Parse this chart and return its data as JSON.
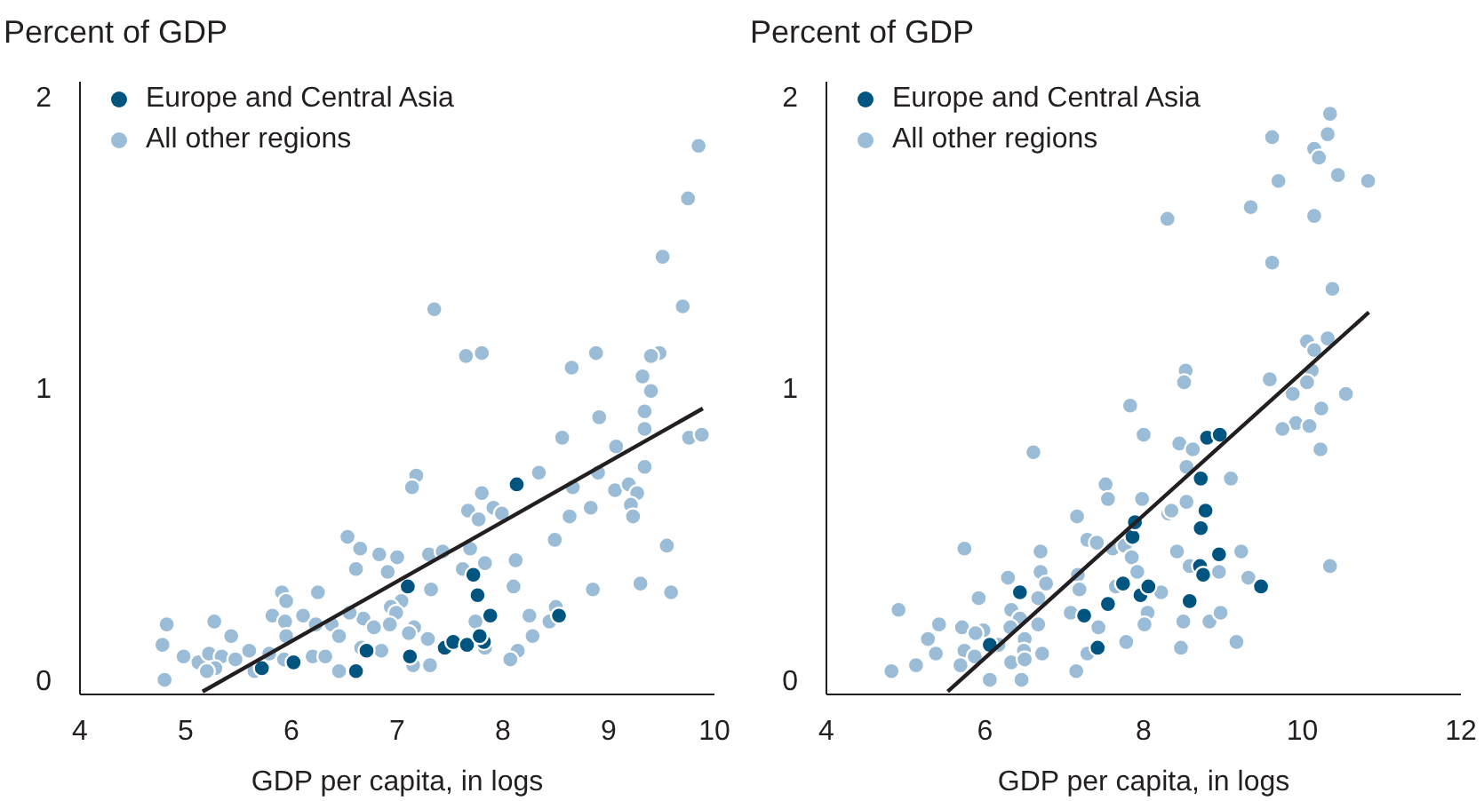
{
  "chart_data": [
    {
      "type": "scatter",
      "ylabel": "Percent of GDP",
      "xlabel": "GDP per capita, in logs",
      "xlim": [
        4,
        10
      ],
      "xticks": [
        4,
        5,
        6,
        7,
        8,
        9,
        10
      ],
      "ylim": [
        -0.05,
        2.05
      ],
      "yticks": [
        0,
        1,
        2
      ],
      "grid": false,
      "legend": "top left",
      "series": [
        {
          "name": "Europe and Central Asia",
          "color": "#005580",
          "marker": "circle",
          "x": [
            5.72,
            6.02,
            6.61,
            6.71,
            7.12,
            7.1,
            7.45,
            7.53,
            7.66,
            7.82,
            7.78,
            7.72,
            7.76,
            7.88,
            8.13,
            8.53
          ],
          "values": [
            0.04,
            0.06,
            0.03,
            0.1,
            0.08,
            0.32,
            0.11,
            0.13,
            0.12,
            0.13,
            0.15,
            0.36,
            0.29,
            0.22,
            0.67,
            0.22
          ]
        },
        {
          "name": "All other regions",
          "color": "#9bbcd6",
          "marker": "circle",
          "x": [
            9.85,
            9.75,
            9.51,
            9.7,
            7.35,
            7.65,
            7.8,
            8.88,
            8.65,
            9.48,
            9.4,
            9.32,
            9.4,
            9.34,
            9.34,
            8.91,
            8.56,
            9.76,
            9.88,
            9.07,
            9.34,
            8.34,
            8.9,
            8.66,
            9.06,
            9.19,
            9.27,
            9.21,
            9.23,
            8.83,
            8.63,
            9.55,
            8.49,
            9.3,
            9.59,
            8.85,
            7.18,
            7.14,
            7.8,
            7.91,
            7.67,
            7.77,
            7.99,
            6.53,
            6.65,
            6.83,
            7.0,
            7.3,
            7.43,
            7.69,
            7.83,
            8.12,
            7.62,
            6.61,
            6.91,
            5.91,
            5.95,
            6.25,
            7.32,
            8.1,
            7.04,
            6.94,
            5.82,
            5.94,
            6.11,
            6.68,
            6.99,
            4.82,
            5.27,
            5.43,
            6.23,
            6.38,
            6.55,
            6.78,
            6.93,
            7.16,
            5.95,
            6.45,
            7.11,
            7.29,
            7.74,
            8.25,
            8.44,
            8.5,
            8.28,
            4.78,
            4.98,
            5.12,
            5.22,
            5.34,
            5.28,
            5.47,
            5.6,
            5.65,
            5.79,
            5.93,
            6.2,
            6.32,
            6.45,
            6.66,
            6.85,
            7.15,
            7.31,
            7.83,
            8.14,
            8.07,
            4.8,
            5.2
          ],
          "values": [
            1.83,
            1.65,
            1.45,
            1.28,
            1.27,
            1.11,
            1.12,
            1.12,
            1.07,
            1.12,
            1.11,
            1.04,
            0.99,
            0.92,
            0.86,
            0.9,
            0.83,
            0.83,
            0.84,
            0.8,
            0.73,
            0.71,
            0.71,
            0.66,
            0.65,
            0.67,
            0.64,
            0.6,
            0.56,
            0.59,
            0.56,
            0.46,
            0.48,
            0.33,
            0.3,
            0.31,
            0.7,
            0.66,
            0.64,
            0.59,
            0.58,
            0.55,
            0.57,
            0.49,
            0.45,
            0.43,
            0.42,
            0.43,
            0.44,
            0.45,
            0.4,
            0.41,
            0.38,
            0.38,
            0.37,
            0.3,
            0.27,
            0.3,
            0.31,
            0.32,
            0.27,
            0.25,
            0.22,
            0.2,
            0.22,
            0.21,
            0.23,
            0.19,
            0.2,
            0.15,
            0.19,
            0.19,
            0.23,
            0.18,
            0.19,
            0.18,
            0.15,
            0.15,
            0.16,
            0.14,
            0.2,
            0.22,
            0.2,
            0.25,
            0.15,
            0.12,
            0.08,
            0.06,
            0.09,
            0.08,
            0.04,
            0.07,
            0.1,
            0.03,
            0.09,
            0.07,
            0.08,
            0.08,
            0.03,
            0.11,
            0.1,
            0.05,
            0.05,
            0.11,
            0.1,
            0.07,
            0.0,
            0.03
          ]
        },
        {
          "type": "line",
          "color": "#231f20",
          "marker": "none",
          "x": [
            5.16,
            9.89
          ],
          "values": [
            -0.04,
            0.93
          ]
        }
      ]
    },
    {
      "type": "scatter",
      "ylabel": "Percent of GDP",
      "xlabel": "GDP per capita, in logs",
      "xlim": [
        4,
        12
      ],
      "xticks": [
        4,
        6,
        8,
        10,
        12
      ],
      "ylim": [
        -0.05,
        2.05
      ],
      "yticks": [
        0,
        1,
        2
      ],
      "grid": false,
      "legend": "top left",
      "series": [
        {
          "name": "Europe and Central Asia",
          "color": "#005580",
          "marker": "circle",
          "x": [
            6.06,
            6.44,
            7.25,
            7.42,
            7.55,
            7.74,
            7.96,
            8.06,
            7.86,
            7.89,
            8.58,
            8.71,
            8.75,
            8.72,
            8.78,
            8.72,
            8.8,
            8.96,
            8.95,
            9.48
          ],
          "values": [
            0.12,
            0.3,
            0.22,
            0.11,
            0.26,
            0.33,
            0.29,
            0.32,
            0.49,
            0.54,
            0.27,
            0.39,
            0.36,
            0.52,
            0.58,
            0.69,
            0.83,
            0.84,
            0.43,
            0.32
          ]
        },
        {
          "name": "All other regions",
          "color": "#9bbcd6",
          "marker": "circle",
          "x": [
            10.35,
            10.32,
            9.62,
            10.15,
            10.21,
            10.45,
            9.7,
            10.83,
            9.35,
            8.3,
            10.15,
            9.62,
            10.38,
            10.32,
            10.06,
            10.15,
            10.12,
            8.53,
            8.51,
            9.59,
            10.06,
            10.55,
            9.88,
            10.24,
            9.92,
            10.09,
            9.75,
            10.23,
            7.83,
            8.0,
            8.45,
            8.62,
            6.61,
            8.54,
            9.1,
            7.52,
            7.55,
            7.98,
            8.54,
            7.16,
            8.31,
            8.35,
            7.29,
            7.41,
            7.61,
            7.76,
            7.85,
            8.42,
            9.23,
            10.35,
            5.74,
            6.7,
            6.29,
            6.7,
            6.77,
            7.17,
            7.92,
            8.58,
            8.95,
            9.32,
            5.92,
            6.67,
            7.19,
            7.65,
            8.22,
            4.91,
            5.42,
            5.71,
            5.98,
            6.33,
            6.44,
            6.67,
            7.08,
            8.05,
            8.01,
            8.5,
            8.83,
            8.97,
            7.43,
            5.28,
            5.88,
            6.32,
            6.5,
            5.38,
            5.74,
            5.87,
            6.49,
            6.72,
            7.29,
            7.78,
            8.47,
            9.17,
            4.82,
            5.13,
            5.69,
            6.33,
            6.5,
            7.15,
            6.06,
            6.46,
            6.17
          ],
          "values": [
            1.94,
            1.87,
            1.86,
            1.82,
            1.79,
            1.73,
            1.71,
            1.71,
            1.62,
            1.58,
            1.59,
            1.43,
            1.34,
            1.17,
            1.16,
            1.13,
            1.06,
            1.06,
            1.02,
            1.03,
            1.02,
            0.98,
            0.98,
            0.93,
            0.88,
            0.87,
            0.86,
            0.79,
            0.94,
            0.84,
            0.81,
            0.79,
            0.78,
            0.73,
            0.69,
            0.67,
            0.62,
            0.62,
            0.61,
            0.56,
            0.57,
            0.58,
            0.48,
            0.47,
            0.45,
            0.46,
            0.42,
            0.44,
            0.44,
            0.39,
            0.45,
            0.44,
            0.35,
            0.37,
            0.33,
            0.36,
            0.37,
            0.39,
            0.37,
            0.35,
            0.28,
            0.28,
            0.31,
            0.32,
            0.3,
            0.24,
            0.19,
            0.18,
            0.17,
            0.24,
            0.21,
            0.19,
            0.23,
            0.23,
            0.19,
            0.2,
            0.2,
            0.23,
            0.18,
            0.14,
            0.16,
            0.18,
            0.14,
            0.09,
            0.1,
            0.08,
            0.1,
            0.09,
            0.09,
            0.13,
            0.11,
            0.13,
            0.03,
            0.05,
            0.05,
            0.06,
            0.07,
            0.03,
            0.0,
            0.0,
            0.12
          ]
        },
        {
          "type": "line",
          "color": "#231f20",
          "marker": "none",
          "x": [
            5.53,
            10.84
          ],
          "values": [
            -0.04,
            1.26
          ]
        }
      ]
    }
  ]
}
